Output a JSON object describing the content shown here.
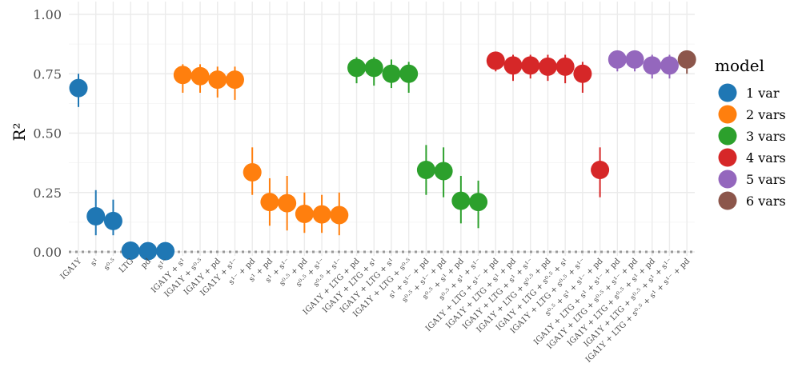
{
  "chart_data": {
    "type": "scatter",
    "ylabel": "R²",
    "ylim": [
      0,
      1
    ],
    "yticks": [
      "0.00",
      "0.25",
      "0.50",
      "0.75",
      "1.00"
    ],
    "ytick_values": [
      0,
      0.25,
      0.5,
      0.75,
      1.0
    ],
    "reference_line": 0,
    "grid": true,
    "legend": {
      "title": "model",
      "position": "right",
      "entries": [
        {
          "name": "1 var",
          "color": "#1f77b4"
        },
        {
          "name": "2 vars",
          "color": "#ff7f0e"
        },
        {
          "name": "3 vars",
          "color": "#2ca02c"
        },
        {
          "name": "4 vars",
          "color": "#d62728"
        },
        {
          "name": "5 vars",
          "color": "#9467bd"
        },
        {
          "name": "6 vars",
          "color": "#8c564b"
        }
      ]
    },
    "points": [
      {
        "label": "IGA1Y",
        "model": "1 var",
        "y": 0.69,
        "lo": 0.61,
        "hi": 0.75
      },
      {
        "label": "s¹",
        "model": "1 var",
        "y": 0.15,
        "lo": 0.07,
        "hi": 0.26
      },
      {
        "label": "s⁰⋅⁵",
        "model": "1 var",
        "y": 0.13,
        "lo": 0.07,
        "hi": 0.22
      },
      {
        "label": "LTG",
        "model": "1 var",
        "y": 0.005,
        "lo": 0.0,
        "hi": 0.02
      },
      {
        "label": "pd",
        "model": "1 var",
        "y": 0.003,
        "lo": 0.0,
        "hi": 0.02
      },
      {
        "label": "s¹⁻",
        "model": "1 var",
        "y": 0.003,
        "lo": 0.0,
        "hi": 0.02
      },
      {
        "label": "IGA1Y + s¹",
        "model": "2 vars",
        "y": 0.745,
        "lo": 0.67,
        "hi": 0.79
      },
      {
        "label": "IGA1Y + s⁰⋅⁵",
        "model": "2 vars",
        "y": 0.74,
        "lo": 0.67,
        "hi": 0.79
      },
      {
        "label": "IGA1Y + pd",
        "model": "2 vars",
        "y": 0.725,
        "lo": 0.65,
        "hi": 0.78
      },
      {
        "label": "IGA1Y + s¹⁻",
        "model": "2 vars",
        "y": 0.725,
        "lo": 0.64,
        "hi": 0.78
      },
      {
        "label": "s¹⁻ + pd",
        "model": "2 vars",
        "y": 0.335,
        "lo": 0.24,
        "hi": 0.44
      },
      {
        "label": "s¹ + pd",
        "model": "2 vars",
        "y": 0.21,
        "lo": 0.11,
        "hi": 0.31
      },
      {
        "label": "s¹ + s¹⁻",
        "model": "2 vars",
        "y": 0.205,
        "lo": 0.09,
        "hi": 0.32
      },
      {
        "label": "s⁰⋅⁵ + pd",
        "model": "2 vars",
        "y": 0.16,
        "lo": 0.08,
        "hi": 0.25
      },
      {
        "label": "s⁰⋅⁵ + s¹⁻",
        "model": "2 vars",
        "y": 0.158,
        "lo": 0.08,
        "hi": 0.24
      },
      {
        "label": "s⁰⋅⁵ + s¹⁻",
        "model": "2 vars",
        "y": 0.155,
        "lo": 0.07,
        "hi": 0.25
      },
      {
        "label": "IGA1Y + LTG + pd",
        "model": "3 vars",
        "y": 0.775,
        "lo": 0.71,
        "hi": 0.82
      },
      {
        "label": "IGA1Y + LTG + s¹",
        "model": "3 vars",
        "y": 0.775,
        "lo": 0.7,
        "hi": 0.82
      },
      {
        "label": "IGA1Y + LTG + s¹",
        "model": "3 vars",
        "y": 0.75,
        "lo": 0.69,
        "hi": 0.81
      },
      {
        "label": "IGA1Y + LTG + s⁰⋅⁵",
        "model": "3 vars",
        "y": 0.75,
        "lo": 0.67,
        "hi": 0.8
      },
      {
        "label": "s¹ + s¹⁻ + pd",
        "model": "3 vars",
        "y": 0.345,
        "lo": 0.24,
        "hi": 0.45
      },
      {
        "label": "s⁰⋅⁵ + s¹⁻ + pd",
        "model": "3 vars",
        "y": 0.34,
        "lo": 0.23,
        "hi": 0.44
      },
      {
        "label": "s⁰⋅⁵ + s¹ + pd",
        "model": "3 vars",
        "y": 0.215,
        "lo": 0.12,
        "hi": 0.32
      },
      {
        "label": "s⁰⋅⁵ + s¹ + s¹⁻",
        "model": "3 vars",
        "y": 0.21,
        "lo": 0.1,
        "hi": 0.3
      },
      {
        "label": "IGA1Y + LTG + s¹⁻ + pd",
        "model": "4 vars",
        "y": 0.805,
        "lo": 0.76,
        "hi": 0.84
      },
      {
        "label": "IGA1Y + LTG + s¹ + pd",
        "model": "4 vars",
        "y": 0.785,
        "lo": 0.72,
        "hi": 0.83
      },
      {
        "label": "IGA1Y + LTG + s¹ + s¹⁻",
        "model": "4 vars",
        "y": 0.785,
        "lo": 0.73,
        "hi": 0.83
      },
      {
        "label": "IGA1Y + LTG + s⁰⋅⁵ + pd",
        "model": "4 vars",
        "y": 0.78,
        "lo": 0.72,
        "hi": 0.83
      },
      {
        "label": "IGA1Y + LTG + s⁰⋅⁵ + s¹",
        "model": "4 vars",
        "y": 0.78,
        "lo": 0.71,
        "hi": 0.83
      },
      {
        "label": "IGA1Y + LTG + s⁰⋅⁵ + s¹⁻",
        "model": "4 vars",
        "y": 0.75,
        "lo": 0.67,
        "hi": 0.8
      },
      {
        "label": "s⁰⋅⁵ + s¹ + s¹⁻ + pd",
        "model": "4 vars",
        "y": 0.345,
        "lo": 0.23,
        "hi": 0.44
      },
      {
        "label": "IGA1Y + LTG + s¹ + s¹⁻ + pd",
        "model": "5 vars",
        "y": 0.81,
        "lo": 0.76,
        "hi": 0.84
      },
      {
        "label": "IGA1Y + LTG + s⁰⋅⁵ + s¹⁻ + pd",
        "model": "5 vars",
        "y": 0.81,
        "lo": 0.76,
        "hi": 0.84
      },
      {
        "label": "IGA1Y + LTG + s⁰⋅⁵ + s¹ + pd",
        "model": "5 vars",
        "y": 0.785,
        "lo": 0.73,
        "hi": 0.83
      },
      {
        "label": "IGA1Y + LTG + s⁰⋅⁵ + s¹ + s¹⁻",
        "model": "5 vars",
        "y": 0.785,
        "lo": 0.73,
        "hi": 0.83
      },
      {
        "label": "IGA1Y + LTG + s⁰⋅⁵ + s¹ + s¹⁻ + pd",
        "model": "6 vars",
        "y": 0.81,
        "lo": 0.75,
        "hi": 0.84
      }
    ]
  }
}
